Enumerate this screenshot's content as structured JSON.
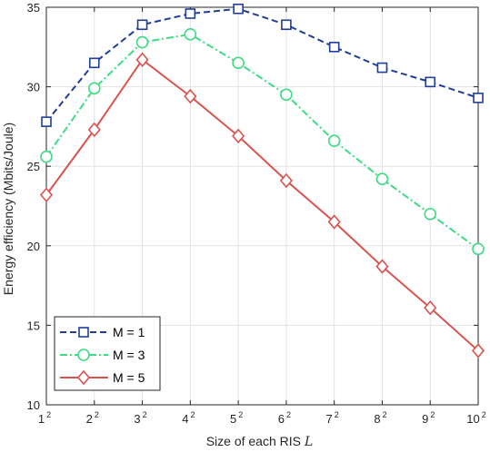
{
  "chart_data": {
    "type": "line",
    "title": "",
    "xlabel": "Size of each RIS",
    "xlabel_symbol": "L",
    "ylabel": "Energy efficiency (Mbits/Joule)",
    "x": [
      1,
      2,
      3,
      4,
      5,
      6,
      7,
      8,
      9,
      10
    ],
    "x_exponent": "2",
    "yticks": [
      10,
      15,
      20,
      25,
      30,
      35
    ],
    "ylim": [
      10,
      35
    ],
    "xlim": [
      1,
      10
    ],
    "grid": true,
    "legend_position": "bottom-left",
    "series": [
      {
        "name": "M = 1",
        "color": "#1f3d99",
        "marker": "square",
        "dash": "dashed",
        "values": [
          27.8,
          31.5,
          33.9,
          34.6,
          34.9,
          33.9,
          32.5,
          31.2,
          30.3,
          29.3
        ]
      },
      {
        "name": "M = 3",
        "color": "#3ddc84",
        "marker": "circle",
        "dash": "dashdot",
        "values": [
          25.6,
          29.9,
          32.8,
          33.3,
          31.5,
          29.5,
          26.6,
          24.2,
          22.0,
          19.8
        ]
      },
      {
        "name": "M = 5",
        "color": "#d9534f",
        "marker": "diamond",
        "dash": "solid",
        "values": [
          23.2,
          27.3,
          31.7,
          29.4,
          26.9,
          24.1,
          21.5,
          18.7,
          16.1,
          13.4
        ]
      }
    ]
  }
}
